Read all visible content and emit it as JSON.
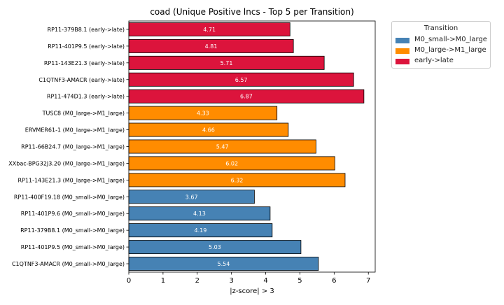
{
  "chart_data": {
    "type": "bar",
    "orientation": "horizontal",
    "title": "coad (Unique Positive lncs - Top 5 per Transition)",
    "xlabel": "|z-score| > 3",
    "ylabel": "",
    "xlim": [
      0,
      7.2
    ],
    "xticks": [
      0,
      1,
      2,
      3,
      4,
      5,
      6,
      7
    ],
    "grid": false,
    "legend": {
      "title": "Transition",
      "placement": "outside-right-top",
      "entries": [
        {
          "name": "M0_small->M0_large",
          "color": "#4682b4"
        },
        {
          "name": "M0_large->M1_large",
          "color": "#ff8c00"
        },
        {
          "name": "early->late",
          "color": "#dc143c"
        }
      ]
    },
    "bars": [
      {
        "label": "RP11-379B8.1 (early->late)",
        "value": 4.71,
        "value_label": "4.71",
        "group": 2
      },
      {
        "label": "RP11-401P9.5 (early->late)",
        "value": 4.81,
        "value_label": "4.81",
        "group": 2
      },
      {
        "label": "RP11-143E21.3 (early->late)",
        "value": 5.71,
        "value_label": "5.71",
        "group": 2
      },
      {
        "label": "C1QTNF3-AMACR (early->late)",
        "value": 6.57,
        "value_label": "6.57",
        "group": 2
      },
      {
        "label": "RP11-474D1.3 (early->late)",
        "value": 6.87,
        "value_label": "6.87",
        "group": 2
      },
      {
        "label": "TUSC8 (M0_large->M1_large)",
        "value": 4.33,
        "value_label": "4.33",
        "group": 1
      },
      {
        "label": "ERVMER61-1 (M0_large->M1_large)",
        "value": 4.66,
        "value_label": "4.66",
        "group": 1
      },
      {
        "label": "RP11-66B24.7 (M0_large->M1_large)",
        "value": 5.47,
        "value_label": "5.47",
        "group": 1
      },
      {
        "label": "XXbac-BPG32J3.20 (M0_large->M1_large)",
        "value": 6.02,
        "value_label": "6.02",
        "group": 1
      },
      {
        "label": "RP11-143E21.3 (M0_large->M1_large)",
        "value": 6.32,
        "value_label": "6.32",
        "group": 1
      },
      {
        "label": "RP11-400F19.18 (M0_small->M0_large)",
        "value": 3.67,
        "value_label": "3.67",
        "group": 0
      },
      {
        "label": "RP11-401P9.6 (M0_small->M0_large)",
        "value": 4.13,
        "value_label": "4.13",
        "group": 0
      },
      {
        "label": "RP11-379B8.1 (M0_small->M0_large)",
        "value": 4.19,
        "value_label": "4.19",
        "group": 0
      },
      {
        "label": "RP11-401P9.5 (M0_small->M0_large)",
        "value": 5.03,
        "value_label": "5.03",
        "group": 0
      },
      {
        "label": "C1QTNF3-AMACR (M0_small->M0_large)",
        "value": 5.54,
        "value_label": "5.54",
        "group": 0
      }
    ]
  }
}
